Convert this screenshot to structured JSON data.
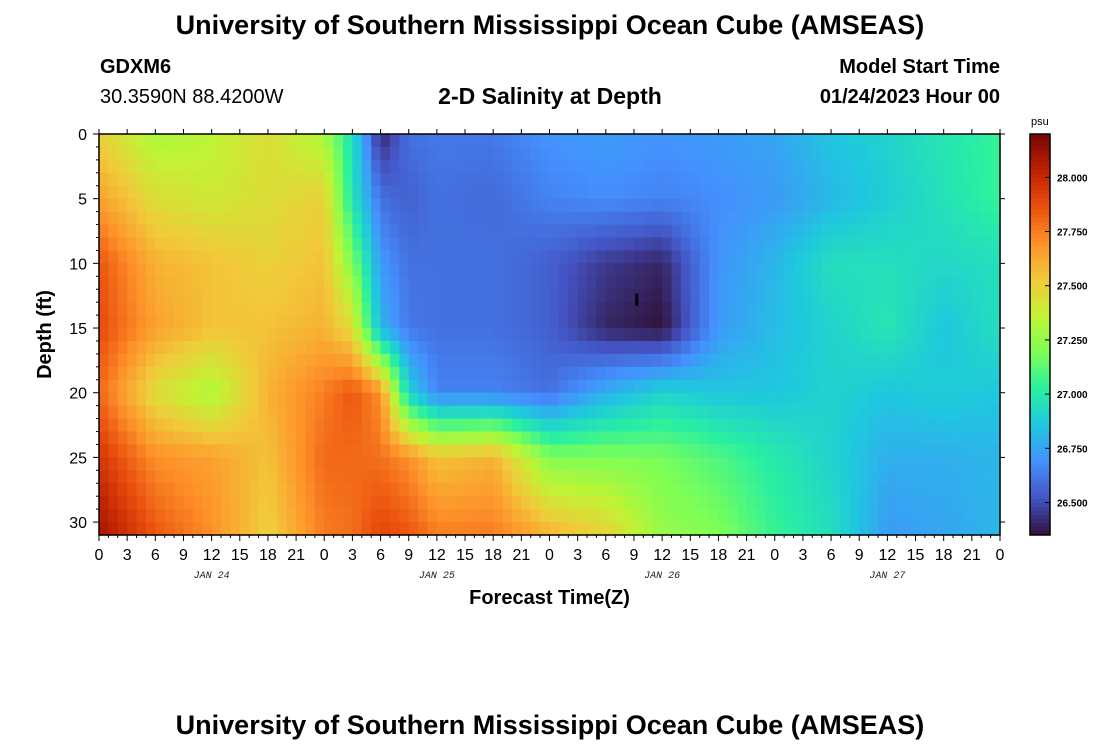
{
  "header": {
    "title": "University of Southern Mississippi Ocean Cube (AMSEAS)",
    "station_id": "GDXM6",
    "coordinates": "30.3590N  88.4200W",
    "subtitle": "2-D Salinity at Depth",
    "model_start_label": "Model Start Time",
    "model_start_value": "01/24/2023 Hour 00"
  },
  "footer": {
    "title": "University of Southern Mississippi Ocean Cube (AMSEAS)"
  },
  "chart_data": {
    "type": "heatmap",
    "xlabel": "Forecast Time(Z)",
    "ylabel": "Depth (ft)",
    "xlim": [
      0,
      96
    ],
    "ylim": [
      0,
      31
    ],
    "y_inverted": true,
    "x_tick_labels": [
      "0",
      "3",
      "6",
      "9",
      "12",
      "15",
      "18",
      "21",
      "0",
      "3",
      "6",
      "9",
      "12",
      "15",
      "18",
      "21",
      "0",
      "3",
      "6",
      "9",
      "12",
      "15",
      "18",
      "21",
      "0",
      "3",
      "6",
      "9",
      "12",
      "15",
      "18",
      "21",
      "0"
    ],
    "date_labels": [
      {
        "label": "JAN 24",
        "hour": 12
      },
      {
        "label": "JAN 25",
        "hour": 36
      },
      {
        "label": "JAN 26",
        "hour": 60
      },
      {
        "label": "JAN 27",
        "hour": 84
      }
    ],
    "y_tick_labels": [
      "0",
      "5",
      "10",
      "15",
      "20",
      "25",
      "30"
    ],
    "colorbar": {
      "unit": "psu",
      "min": 26.35,
      "max": 28.2,
      "tick_labels": [
        "28.000",
        "27.750",
        "27.500",
        "27.250",
        "27.000",
        "26.750",
        "26.500"
      ],
      "colormap": [
        "#30123b",
        "#4454c4",
        "#4490fe",
        "#1fc8de",
        "#29efa2",
        "#7dff56",
        "#c1f334",
        "#f1ca3a",
        "#fe922a",
        "#ea4f0d",
        "#be2102",
        "#7a0403"
      ]
    },
    "depths": [
      0,
      5,
      10,
      15,
      20,
      25,
      31
    ],
    "times": [
      0,
      6,
      12,
      18,
      24,
      27,
      30,
      33,
      36,
      42,
      48,
      54,
      60,
      66,
      72,
      78,
      84,
      90,
      96
    ],
    "values": [
      [
        27.5,
        27.3,
        27.35,
        27.45,
        27.3,
        26.95,
        26.4,
        26.6,
        26.62,
        26.62,
        26.7,
        26.72,
        26.7,
        26.72,
        26.75,
        26.85,
        26.9,
        26.98,
        27.05
      ],
      [
        27.65,
        27.45,
        27.4,
        27.45,
        27.5,
        26.97,
        26.6,
        26.55,
        26.6,
        26.58,
        26.65,
        26.68,
        26.65,
        26.68,
        26.72,
        26.8,
        26.88,
        26.96,
        27.05
      ],
      [
        27.85,
        27.6,
        27.55,
        27.5,
        27.55,
        27.2,
        26.72,
        26.6,
        26.6,
        26.6,
        26.55,
        26.45,
        26.4,
        26.7,
        26.8,
        26.95,
        26.95,
        26.92,
        26.95
      ],
      [
        27.88,
        27.65,
        27.55,
        27.55,
        27.6,
        27.45,
        26.8,
        26.62,
        26.6,
        26.6,
        26.55,
        26.4,
        26.35,
        26.72,
        26.82,
        26.9,
        26.98,
        26.85,
        26.95
      ],
      [
        27.8,
        27.45,
        27.3,
        27.6,
        27.75,
        27.85,
        27.7,
        26.9,
        26.65,
        26.65,
        26.6,
        26.78,
        26.9,
        26.85,
        26.85,
        26.9,
        26.85,
        26.88,
        26.85
      ],
      [
        27.95,
        27.7,
        27.65,
        27.55,
        27.8,
        27.8,
        27.78,
        27.7,
        27.55,
        27.6,
        27.2,
        27.2,
        27.18,
        27.1,
        27.0,
        26.9,
        26.78,
        26.78,
        26.8
      ],
      [
        28.1,
        27.85,
        27.7,
        27.5,
        27.75,
        27.78,
        27.9,
        27.85,
        27.75,
        27.75,
        27.6,
        27.5,
        27.25,
        27.2,
        27.05,
        26.95,
        26.72,
        26.75,
        26.8
      ]
    ],
    "marker": {
      "hour": 57.3,
      "depth": 12.8
    }
  }
}
